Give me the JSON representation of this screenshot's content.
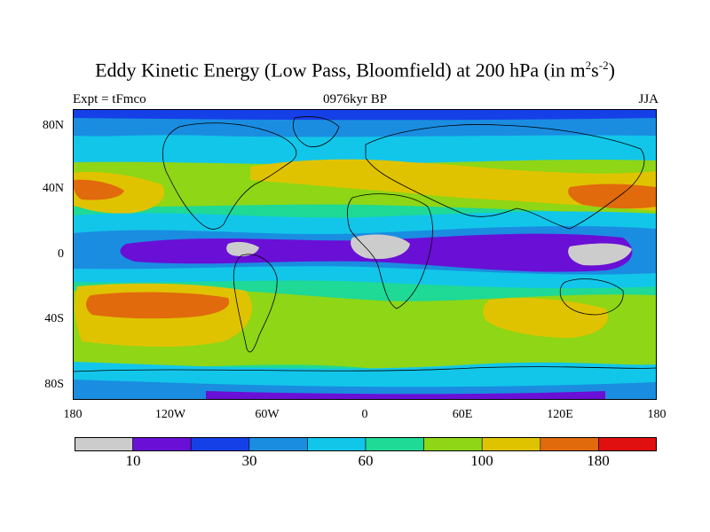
{
  "title": {
    "main": "Eddy Kinetic Energy (Low Pass, Bloomfield) at 200 hPa (in m",
    "unit_exp1": "2",
    "unit_mid": "s",
    "unit_exp2": "-2",
    "unit_close": ")"
  },
  "subtitles": {
    "left": "Expt = tFmco",
    "center": "0976kyr BP",
    "right": "JJA"
  },
  "latitude_labels": [
    "80N",
    "40N",
    "0",
    "40S",
    "80S"
  ],
  "longitude_labels": [
    "180",
    "120W",
    "60W",
    "0",
    "60E",
    "120E",
    "180"
  ],
  "colorbar": {
    "colors": [
      "#cccccc",
      "#6a0fd6",
      "#1540e8",
      "#1a8de0",
      "#12c6ea",
      "#1fd996",
      "#8ed616",
      "#e0c300",
      "#e06a0c",
      "#e01010"
    ],
    "labels": [
      "10",
      "30",
      "60",
      "100",
      "180"
    ]
  },
  "field_colors": {
    "gray": "#cccccc",
    "purple": "#6a0fd6",
    "blue": "#1540e8",
    "mid_blue": "#1a8de0",
    "cyan": "#12c6ea",
    "teal": "#1fd996",
    "green": "#8ed616",
    "yellow": "#e0c300",
    "orange": "#e06a0c",
    "coastline": "#000000"
  }
}
